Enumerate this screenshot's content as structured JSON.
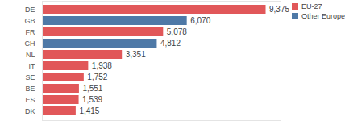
{
  "chart_data": {
    "type": "bar",
    "orientation": "horizontal",
    "categories": [
      "DE",
      "GB",
      "FR",
      "CH",
      "NL",
      "IT",
      "SE",
      "BE",
      "ES",
      "DK"
    ],
    "series": [
      {
        "name": "EU-27",
        "color": "#e15759",
        "values": [
          9375,
          null,
          5078,
          null,
          3351,
          1938,
          1752,
          1551,
          1539,
          1415
        ],
        "value_labels": [
          "9,375",
          null,
          "5,078",
          null,
          "3,351",
          "1,938",
          "1,752",
          "1,551",
          "1,539",
          "1,415"
        ]
      },
      {
        "name": "Other Europe",
        "color": "#4e79a7",
        "values": [
          null,
          6070,
          null,
          4812,
          null,
          null,
          null,
          null,
          null,
          null
        ],
        "value_labels": [
          null,
          "6,070",
          null,
          "4,812",
          null,
          null,
          null,
          null,
          null,
          null
        ]
      }
    ],
    "xlim": [
      0,
      10000
    ],
    "xticks": [],
    "data_labels": true,
    "tick_labels": "y",
    "legend": "top-right",
    "grid": false
  }
}
